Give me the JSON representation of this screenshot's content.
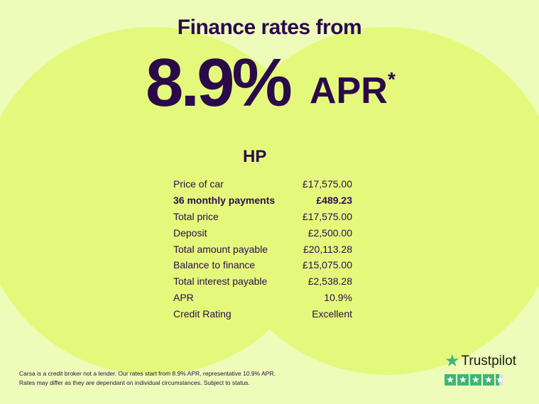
{
  "headline": "Finance rates from",
  "rate": "8.9%",
  "rate_suffix": "APR",
  "asterisk": "*",
  "section_title": "HP",
  "rows": [
    {
      "label": "Price of car",
      "value": "£17,575.00"
    },
    {
      "label": "36 monthly payments",
      "value": "£489.23",
      "bold": true
    },
    {
      "label": "Total price",
      "value": "£17,575.00"
    },
    {
      "label": "Deposit",
      "value": "£2,500.00"
    },
    {
      "label": "Total amount payable",
      "value": "£20,113.28"
    },
    {
      "label": "Balance to finance",
      "value": "£15,075.00"
    },
    {
      "label": "Total interest payable",
      "value": "£2,538.28"
    },
    {
      "label": "APR",
      "value": "10.9%"
    },
    {
      "label": "Credit Rating",
      "value": "Excellent"
    }
  ],
  "disclaimer": [
    "Carsa is a credit broker not a lender. Our rates start from 8.9% APR, representative 10.9% APR.",
    "Rates may differ as they are dependant on individual circumstances. Subject to status."
  ],
  "trustpilot": {
    "name": "Trustpilot",
    "rating_stars": 4.5,
    "color": "#3fb57a"
  }
}
